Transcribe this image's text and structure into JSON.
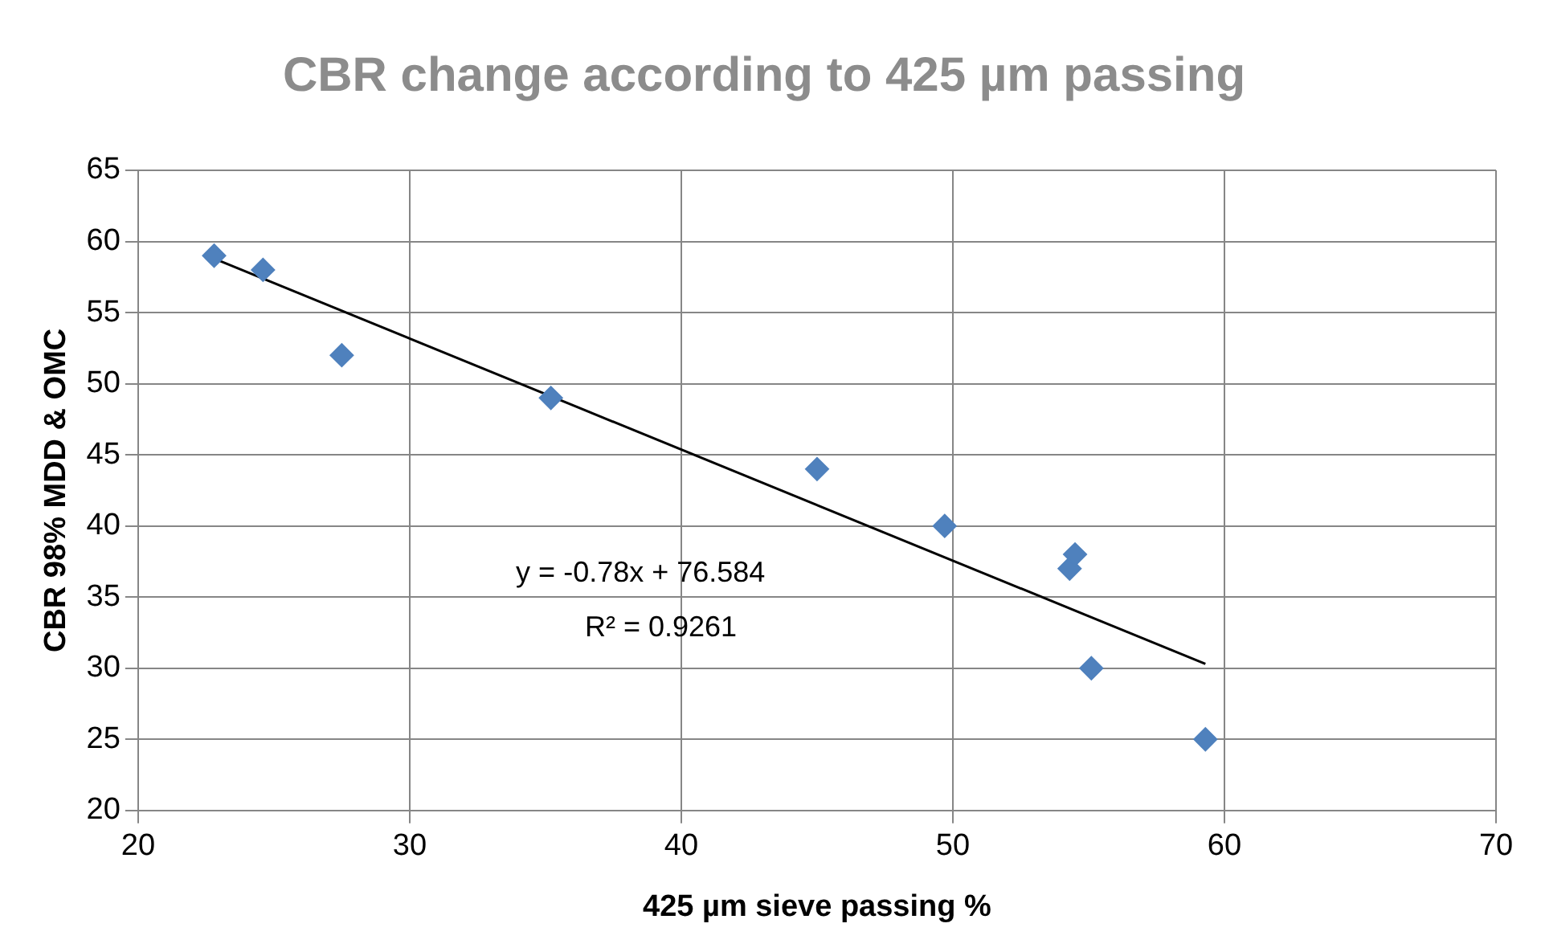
{
  "chart_data": {
    "type": "scatter",
    "title": "CBR change according to 425 µm passing",
    "xlabel": "425 µm sieve passing %",
    "ylabel": "CBR 98% MDD & OMC",
    "series": [
      {
        "type": "scatter",
        "color": "#4f81bd",
        "marker": "diamond",
        "x": [
          22.8,
          24.6,
          27.5,
          35.2,
          45,
          49.7,
          54.3,
          54.5,
          55.1,
          59.3
        ],
        "values": [
          59,
          58,
          52,
          49,
          44,
          40,
          37,
          38,
          30,
          25
        ]
      },
      {
        "type": "line",
        "color": "#000000",
        "marker": "none",
        "x": [
          22.8,
          59.3
        ],
        "values": [
          58.8,
          30.3
        ]
      }
    ],
    "xlim": [
      20,
      70
    ],
    "xticks": [
      20,
      30,
      40,
      50,
      60,
      70
    ],
    "ylim": [
      20,
      65
    ],
    "yticks": [
      20,
      25,
      30,
      35,
      40,
      45,
      50,
      55,
      60,
      65
    ],
    "grid": true,
    "legend": false,
    "annotations": [
      "y = -0.78x + 76.584",
      "R² = 0.9261"
    ]
  }
}
